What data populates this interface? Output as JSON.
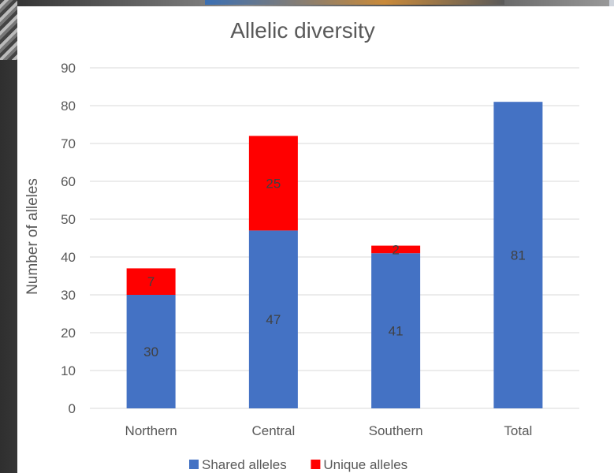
{
  "chart_data": {
    "type": "bar",
    "stacked": true,
    "title": "Allelic diversity",
    "xlabel": "",
    "ylabel": "Number of alleles",
    "categories": [
      "Northern",
      "Central",
      "Southern",
      "Total"
    ],
    "series": [
      {
        "name": "Shared alleles",
        "values": [
          30,
          47,
          41,
          81
        ],
        "color": "#4472C4"
      },
      {
        "name": "Unique alleles",
        "values": [
          7,
          25,
          2,
          null
        ],
        "color": "#FF0000"
      }
    ],
    "ylim": [
      0,
      90
    ],
    "yticks": [
      0,
      10,
      20,
      30,
      40,
      50,
      60,
      70,
      80,
      90
    ],
    "grid": true,
    "legend": "bottom",
    "data_labels": true
  }
}
